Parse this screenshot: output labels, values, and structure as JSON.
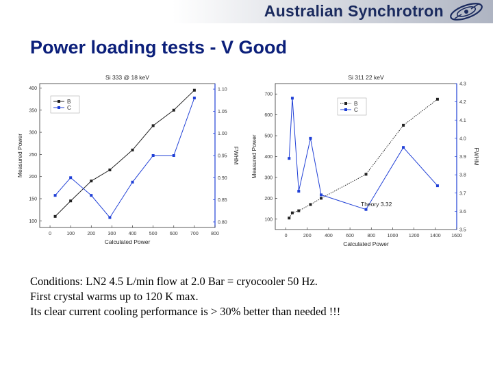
{
  "header": {
    "brand": "Australian Synchrotron",
    "logo_icon": "synchrotron-orbit-icon",
    "colors": {
      "brand_text": "#1a2a5e",
      "banner_light": "#ffffff",
      "banner_dark": "#aeb4c2"
    }
  },
  "slide": {
    "title": "Power loading tests - V Good",
    "title_color": "#0b1f7a"
  },
  "notes": [
    "Conditions: LN2 4.5 L/min flow at 2.0 Bar = cryocooler 50 Hz.",
    "First crystal warms up to 120 K max.",
    "Its clear current cooling performance is > 30% better than needed !!!"
  ],
  "chart_data": [
    {
      "type": "line",
      "title": "Si 333 @ 18 keV",
      "xlabel": "Calculated Power",
      "ylabel": "Measured Power",
      "y2label": "FWHM",
      "xlim": [
        -50,
        800
      ],
      "ylim": [
        85,
        410
      ],
      "y2lim": [
        0.7875,
        1.1125
      ],
      "xticks": [
        "0",
        "100",
        "200",
        "300",
        "400",
        "500",
        "600",
        "700",
        "800"
      ],
      "yticks": [
        "100",
        "150",
        "200",
        "250",
        "300",
        "350",
        "400"
      ],
      "y2ticks": [
        "0.80",
        "0.85",
        "0.90",
        "0.95",
        "1.00",
        "1.05",
        "1.10"
      ],
      "grid": false,
      "legend": "top-left",
      "series": [
        {
          "name": "B",
          "axis": "left",
          "color": "#222222",
          "marker": "square",
          "x": [
            25,
            100,
            200,
            290,
            400,
            500,
            600,
            700
          ],
          "y": [
            110,
            145,
            190,
            215,
            260,
            315,
            350,
            395
          ]
        },
        {
          "name": "C",
          "axis": "right",
          "color": "#1f3fd6",
          "marker": "square",
          "x": [
            25,
            100,
            200,
            290,
            400,
            500,
            600,
            700
          ],
          "y": [
            0.86,
            0.9,
            0.86,
            0.81,
            0.89,
            0.95,
            0.95,
            1.08
          ]
        }
      ]
    },
    {
      "type": "line",
      "title": "Si 311 22 keV",
      "xlabel": "Calculated Power",
      "ylabel": "Measured Power",
      "y2label": "FWHM",
      "xlim": [
        -100,
        1600
      ],
      "ylim": [
        50,
        750
      ],
      "y2lim": [
        3.5,
        4.3
      ],
      "xticks": [
        "0",
        "200",
        "400",
        "600",
        "800",
        "1000",
        "1200",
        "1400",
        "1600"
      ],
      "yticks": [
        "100",
        "200",
        "300",
        "400",
        "500",
        "600",
        "700"
      ],
      "y2ticks": [
        "3.5",
        "3.6",
        "3.7",
        "3.8",
        "3.9",
        "4.0",
        "4.1",
        "4.2",
        "4.3"
      ],
      "grid": false,
      "legend": "top-center",
      "annotations": [
        "Theory 3.32"
      ],
      "series": [
        {
          "name": "B",
          "axis": "left",
          "color": "#222222",
          "marker": "square",
          "line": "dotted",
          "x": [
            30,
            60,
            120,
            230,
            330,
            750,
            1100,
            1420
          ],
          "y": [
            105,
            130,
            140,
            170,
            200,
            315,
            550,
            675
          ]
        },
        {
          "name": "C",
          "axis": "right",
          "color": "#1f3fd6",
          "marker": "square",
          "x": [
            30,
            60,
            120,
            230,
            330,
            750,
            1100,
            1420
          ],
          "y": [
            3.89,
            4.22,
            3.71,
            4.0,
            3.69,
            3.61,
            3.95,
            3.74
          ]
        }
      ]
    }
  ]
}
